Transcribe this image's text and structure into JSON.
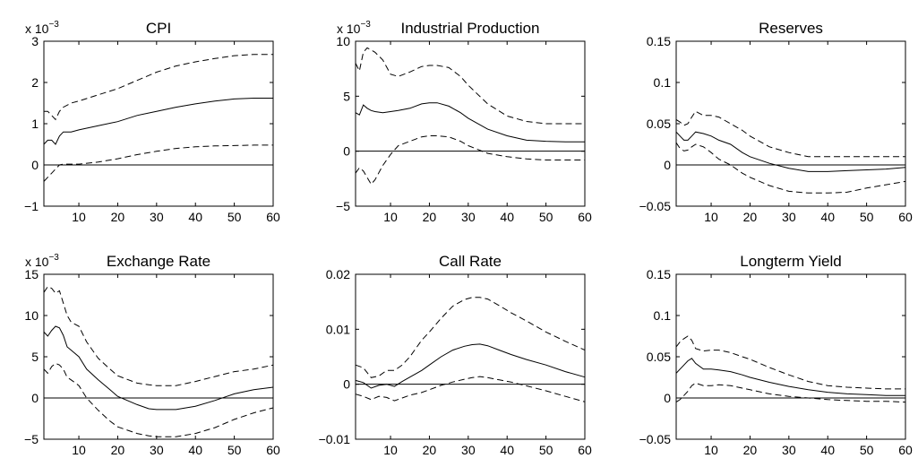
{
  "chart_data": [
    {
      "type": "line",
      "title": "CPI",
      "scale_label": {
        "base": "x 10",
        "exponent": "−3"
      },
      "xlim": [
        1,
        60
      ],
      "ylim": [
        -1,
        3
      ],
      "xticks": [
        10,
        20,
        30,
        40,
        50,
        60
      ],
      "yticks": [
        -1,
        0,
        1,
        2,
        3
      ],
      "ytick_labels": [
        "−1",
        "0",
        "1",
        "2",
        "3"
      ],
      "zero_line": true,
      "x": [
        1,
        2,
        3,
        4,
        5,
        6,
        8,
        10,
        15,
        20,
        25,
        30,
        35,
        40,
        45,
        50,
        55,
        60
      ],
      "series": [
        {
          "style": "solid",
          "values": [
            0.5,
            0.6,
            0.6,
            0.5,
            0.7,
            0.8,
            0.8,
            0.85,
            0.95,
            1.05,
            1.2,
            1.3,
            1.4,
            1.48,
            1.55,
            1.6,
            1.62,
            1.62
          ]
        },
        {
          "style": "dashed",
          "values": [
            1.3,
            1.3,
            1.2,
            1.1,
            1.3,
            1.4,
            1.5,
            1.55,
            1.7,
            1.85,
            2.05,
            2.25,
            2.4,
            2.5,
            2.58,
            2.65,
            2.68,
            2.68
          ]
        },
        {
          "style": "dashed",
          "values": [
            -0.4,
            -0.3,
            -0.2,
            -0.1,
            0.0,
            0.02,
            0.02,
            0.02,
            0.07,
            0.15,
            0.25,
            0.33,
            0.4,
            0.44,
            0.46,
            0.47,
            0.48,
            0.48
          ]
        }
      ]
    },
    {
      "type": "line",
      "title": "Industrial Production",
      "scale_label": {
        "base": "x 10",
        "exponent": "−3"
      },
      "xlim": [
        1,
        60
      ],
      "ylim": [
        -5,
        10
      ],
      "xticks": [
        10,
        20,
        30,
        40,
        50,
        60
      ],
      "yticks": [
        -5,
        0,
        5,
        10
      ],
      "ytick_labels": [
        "−5",
        "0",
        "5",
        "10"
      ],
      "zero_line": true,
      "x": [
        1,
        2,
        3,
        4,
        5,
        6,
        8,
        10,
        12,
        15,
        18,
        20,
        22,
        25,
        28,
        30,
        35,
        40,
        45,
        50,
        55,
        60
      ],
      "series": [
        {
          "style": "solid",
          "values": [
            3.5,
            3.3,
            4.2,
            3.9,
            3.7,
            3.6,
            3.5,
            3.6,
            3.7,
            3.9,
            4.3,
            4.4,
            4.4,
            4.1,
            3.5,
            3.0,
            2.0,
            1.4,
            1.0,
            0.9,
            0.85,
            0.85
          ]
        },
        {
          "style": "dashed",
          "values": [
            8.0,
            7.3,
            9.0,
            9.4,
            9.2,
            9.0,
            8.3,
            7.0,
            6.8,
            7.2,
            7.7,
            7.8,
            7.8,
            7.6,
            6.8,
            6.0,
            4.3,
            3.2,
            2.7,
            2.5,
            2.5,
            2.5
          ]
        },
        {
          "style": "dashed",
          "values": [
            -2.0,
            -1.5,
            -1.8,
            -2.4,
            -3.0,
            -2.6,
            -1.3,
            -0.3,
            0.5,
            0.9,
            1.3,
            1.4,
            1.4,
            1.3,
            0.9,
            0.5,
            -0.2,
            -0.5,
            -0.7,
            -0.8,
            -0.8,
            -0.8
          ]
        }
      ]
    },
    {
      "type": "line",
      "title": "Reserves",
      "xlim": [
        1,
        60
      ],
      "ylim": [
        -0.05,
        0.15
      ],
      "xticks": [
        10,
        20,
        30,
        40,
        50,
        60
      ],
      "yticks": [
        -0.05,
        0,
        0.05,
        0.1,
        0.15
      ],
      "ytick_labels": [
        "−0.05",
        "0",
        "0.05",
        "0.1",
        "0.15"
      ],
      "zero_line": true,
      "x": [
        1,
        2,
        3,
        4,
        5,
        6,
        8,
        10,
        12,
        15,
        18,
        20,
        25,
        30,
        35,
        40,
        45,
        50,
        55,
        60
      ],
      "series": [
        {
          "style": "solid",
          "values": [
            0.04,
            0.035,
            0.03,
            0.03,
            0.035,
            0.04,
            0.038,
            0.035,
            0.03,
            0.025,
            0.015,
            0.01,
            0.002,
            -0.004,
            -0.008,
            -0.008,
            -0.007,
            -0.006,
            -0.005,
            -0.003
          ]
        },
        {
          "style": "dashed",
          "values": [
            0.055,
            0.052,
            0.048,
            0.05,
            0.058,
            0.065,
            0.06,
            0.06,
            0.058,
            0.05,
            0.042,
            0.035,
            0.022,
            0.015,
            0.01,
            0.01,
            0.01,
            0.01,
            0.01,
            0.01
          ]
        },
        {
          "style": "dashed",
          "values": [
            0.027,
            0.02,
            0.017,
            0.018,
            0.022,
            0.025,
            0.022,
            0.015,
            0.007,
            0.0,
            -0.01,
            -0.015,
            -0.025,
            -0.032,
            -0.034,
            -0.034,
            -0.033,
            -0.028,
            -0.024,
            -0.02
          ]
        }
      ]
    },
    {
      "type": "line",
      "title": "Exchange Rate",
      "scale_label": {
        "base": "x 10",
        "exponent": "−3"
      },
      "xlim": [
        1,
        60
      ],
      "ylim": [
        -5,
        15
      ],
      "xticks": [
        10,
        20,
        30,
        40,
        50,
        60
      ],
      "yticks": [
        -5,
        0,
        5,
        10,
        15
      ],
      "ytick_labels": [
        "−5",
        "0",
        "5",
        "10",
        "15"
      ],
      "zero_line": true,
      "x": [
        1,
        2,
        3,
        4,
        5,
        6,
        7,
        8,
        10,
        12,
        15,
        18,
        20,
        25,
        28,
        30,
        35,
        40,
        45,
        50,
        55,
        60
      ],
      "series": [
        {
          "style": "solid",
          "values": [
            8.0,
            7.5,
            8.2,
            8.7,
            8.5,
            7.6,
            6.2,
            5.8,
            5.0,
            3.5,
            2.2,
            1.0,
            0.2,
            -0.8,
            -1.3,
            -1.4,
            -1.4,
            -1.0,
            -0.3,
            0.5,
            1.0,
            1.3
          ]
        },
        {
          "style": "dashed",
          "values": [
            12.8,
            13.5,
            13.3,
            12.7,
            13.0,
            11.5,
            10.0,
            9.2,
            8.7,
            6.8,
            4.8,
            3.5,
            2.7,
            1.8,
            1.6,
            1.5,
            1.5,
            2.0,
            2.6,
            3.2,
            3.5,
            4.0
          ]
        },
        {
          "style": "dashed",
          "values": [
            3.5,
            3.0,
            3.8,
            4.2,
            4.0,
            3.5,
            2.5,
            2.2,
            1.5,
            0.0,
            -1.5,
            -2.8,
            -3.5,
            -4.3,
            -4.6,
            -4.7,
            -4.7,
            -4.3,
            -3.6,
            -2.6,
            -1.8,
            -1.2
          ]
        }
      ]
    },
    {
      "type": "line",
      "title": "Call Rate",
      "xlim": [
        1,
        60
      ],
      "ylim": [
        -0.01,
        0.02
      ],
      "xticks": [
        10,
        20,
        30,
        40,
        50,
        60
      ],
      "yticks": [
        -0.01,
        0,
        0.01,
        0.02
      ],
      "ytick_labels": [
        "−0.01",
        "0",
        "0.01",
        "0.02"
      ],
      "zero_line": true,
      "x": [
        1,
        3,
        5,
        7,
        9,
        11,
        13,
        15,
        18,
        20,
        23,
        26,
        29,
        31,
        33,
        35,
        38,
        41,
        45,
        50,
        55,
        60
      ],
      "series": [
        {
          "style": "solid",
          "values": [
            0.0007,
            0.0003,
            -0.0007,
            -0.0002,
            0.0,
            -0.0004,
            0.0005,
            0.0013,
            0.0025,
            0.0035,
            0.005,
            0.0062,
            0.0069,
            0.0072,
            0.0073,
            0.007,
            0.0062,
            0.0054,
            0.0045,
            0.0035,
            0.0023,
            0.0013
          ]
        },
        {
          "style": "dashed",
          "values": [
            0.0035,
            0.003,
            0.0012,
            0.0015,
            0.0025,
            0.0025,
            0.0035,
            0.005,
            0.008,
            0.0095,
            0.012,
            0.0142,
            0.0154,
            0.0158,
            0.0158,
            0.0155,
            0.0143,
            0.013,
            0.0115,
            0.0095,
            0.0078,
            0.0062
          ]
        },
        {
          "style": "dashed",
          "values": [
            -0.0018,
            -0.0022,
            -0.0028,
            -0.0022,
            -0.0024,
            -0.003,
            -0.0025,
            -0.002,
            -0.0015,
            -0.001,
            -0.0002,
            0.0004,
            0.0009,
            0.0012,
            0.0014,
            0.0012,
            0.0008,
            0.0004,
            -0.0003,
            -0.0012,
            -0.0022,
            -0.0032
          ]
        }
      ]
    },
    {
      "type": "line",
      "title": "Longterm Yield",
      "xlim": [
        1,
        60
      ],
      "ylim": [
        -0.05,
        0.15
      ],
      "xticks": [
        10,
        20,
        30,
        40,
        50,
        60
      ],
      "yticks": [
        -0.05,
        0,
        0.05,
        0.1,
        0.15
      ],
      "ytick_labels": [
        "−0.05",
        "0",
        "0.05",
        "0.1",
        "0.15"
      ],
      "zero_line": true,
      "x": [
        1,
        2,
        3,
        4,
        5,
        6,
        8,
        10,
        12,
        15,
        18,
        20,
        25,
        30,
        35,
        40,
        45,
        50,
        55,
        60
      ],
      "series": [
        {
          "style": "solid",
          "values": [
            0.03,
            0.035,
            0.04,
            0.045,
            0.048,
            0.042,
            0.035,
            0.035,
            0.034,
            0.032,
            0.028,
            0.025,
            0.019,
            0.014,
            0.01,
            0.007,
            0.005,
            0.004,
            0.003,
            0.003
          ]
        },
        {
          "style": "dashed",
          "values": [
            0.062,
            0.068,
            0.072,
            0.075,
            0.07,
            0.06,
            0.057,
            0.058,
            0.058,
            0.055,
            0.05,
            0.047,
            0.037,
            0.028,
            0.02,
            0.015,
            0.013,
            0.012,
            0.011,
            0.011
          ]
        },
        {
          "style": "dashed",
          "values": [
            -0.005,
            -0.002,
            0.003,
            0.008,
            0.015,
            0.018,
            0.015,
            0.015,
            0.016,
            0.015,
            0.012,
            0.01,
            0.005,
            0.002,
            0.0,
            -0.002,
            -0.003,
            -0.004,
            -0.004,
            -0.005
          ]
        }
      ]
    }
  ]
}
